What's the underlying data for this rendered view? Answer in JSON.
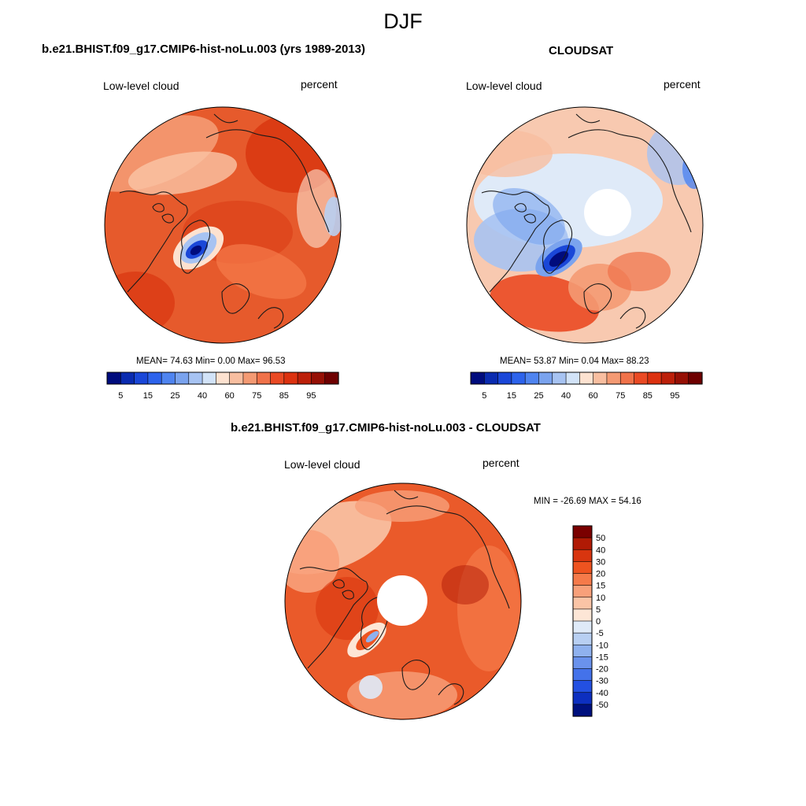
{
  "title": "DJF",
  "panels": [
    {
      "title": "b.e21.BHIST.f09_g17.CMIP6-hist-noLu.003 (yrs 1989-2013)",
      "left_label": "Low-level cloud",
      "right_label": "percent",
      "stats": "MEAN=  74.63  Min=   0.00  Max=  96.53"
    },
    {
      "title": "CLOUDSAT",
      "left_label": "Low-level cloud",
      "right_label": "percent",
      "stats": "MEAN=  53.87  Min=   0.04  Max=  88.23"
    },
    {
      "title": "b.e21.BHIST.f09_g17.CMIP6-hist-noLu.003 - CLOUDSAT",
      "left_label": "Low-level cloud",
      "right_label": "percent",
      "stats": "MIN = -26.69 MAX =  54.16"
    }
  ],
  "chart_data": [
    {
      "type": "heatmap",
      "projection": "north polar stereographic",
      "variable": "Low-level cloud",
      "units": "percent",
      "mean": 74.63,
      "min": 0.0,
      "max": 96.53,
      "colorbar": {
        "orientation": "horizontal",
        "boundaries": [
          5,
          10,
          15,
          20,
          25,
          30,
          40,
          50,
          60,
          65,
          70,
          75,
          80,
          85,
          90,
          95
        ],
        "tick_labels": [
          "5",
          "15",
          "25",
          "40",
          "60",
          "75",
          "85",
          "95"
        ],
        "colors": [
          "#000c7d",
          "#0a2bb0",
          "#1a47d8",
          "#2d63ec",
          "#4f84f0",
          "#7aa3ee",
          "#a7c3f2",
          "#d2e3f8",
          "#fde2d0",
          "#f8bea0",
          "#f49a73",
          "#f0724a",
          "#ea4a24",
          "#dc3210",
          "#bc200a",
          "#961005",
          "#6e0000"
        ]
      }
    },
    {
      "type": "heatmap",
      "projection": "north polar stereographic",
      "variable": "Low-level cloud",
      "units": "percent",
      "mean": 53.87,
      "min": 0.04,
      "max": 88.23,
      "colorbar": {
        "orientation": "horizontal",
        "boundaries": [
          5,
          10,
          15,
          20,
          25,
          30,
          40,
          50,
          60,
          65,
          70,
          75,
          80,
          85,
          90,
          95
        ],
        "tick_labels": [
          "5",
          "15",
          "25",
          "40",
          "60",
          "75",
          "85",
          "95"
        ],
        "colors": [
          "#000c7d",
          "#0a2bb0",
          "#1a47d8",
          "#2d63ec",
          "#4f84f0",
          "#7aa3ee",
          "#a7c3f2",
          "#d2e3f8",
          "#fde2d0",
          "#f8bea0",
          "#f49a73",
          "#f0724a",
          "#ea4a24",
          "#dc3210",
          "#bc200a",
          "#961005",
          "#6e0000"
        ]
      }
    },
    {
      "type": "heatmap",
      "projection": "north polar stereographic",
      "variable": "Low-level cloud",
      "units": "percent",
      "min": -26.69,
      "max": 54.16,
      "colorbar": {
        "orientation": "vertical",
        "boundaries": [
          -50,
          -40,
          -30,
          -20,
          -15,
          -10,
          -5,
          0,
          5,
          10,
          15,
          20,
          30,
          40,
          50
        ],
        "tick_labels": [
          "50",
          "40",
          "30",
          "20",
          "15",
          "10",
          "5",
          "0",
          "-5",
          "-10",
          "-15",
          "-20",
          "-30",
          "-40",
          "-50"
        ],
        "colors_top_to_bottom": [
          "#7a0000",
          "#b01a05",
          "#d8350f",
          "#ee5320",
          "#f57a4a",
          "#f8a07a",
          "#fac4a6",
          "#fde6d6",
          "#dfeaf8",
          "#b8cff2",
          "#8fb1ee",
          "#6a92ec",
          "#4472ea",
          "#2350e2",
          "#0d2fc0",
          "#00107e"
        ]
      }
    }
  ]
}
